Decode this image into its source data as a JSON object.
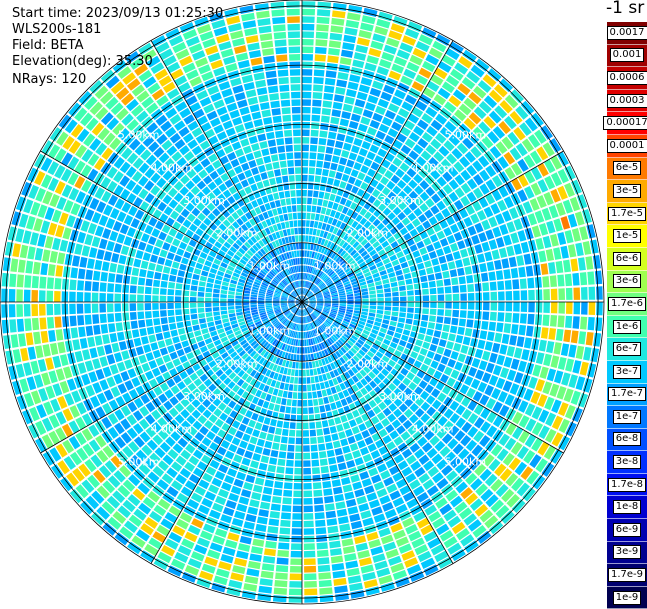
{
  "info": {
    "start_time": "Start time: 2023/09/13 01:25:30",
    "instrument": "WLS200s-181",
    "field": "Field: BETA",
    "elevation": "Elevation(deg): 35.30",
    "nrays": "NRays: 120"
  },
  "colorbar": {
    "unit_title": "-1 sr",
    "levels": [
      {
        "label": "0.0017",
        "color": "#800000"
      },
      {
        "label": "0.001",
        "color": "#a00000"
      },
      {
        "label": "0.0006",
        "color": "#c40000"
      },
      {
        "label": "0.0003",
        "color": "#e00000"
      },
      {
        "label": "0.00017",
        "color": "#ff0000"
      },
      {
        "label": "0.0001",
        "color": "#ff4400"
      },
      {
        "label": "6e-5",
        "color": "#ff7a00"
      },
      {
        "label": "3e-5",
        "color": "#ffaa00"
      },
      {
        "label": "1.7e-5",
        "color": "#ffd400"
      },
      {
        "label": "1e-5",
        "color": "#ffff00"
      },
      {
        "label": "6e-6",
        "color": "#d4ff20"
      },
      {
        "label": "3e-6",
        "color": "#a0ff50"
      },
      {
        "label": "1.7e-6",
        "color": "#70ff80"
      },
      {
        "label": "1e-6",
        "color": "#40ffb0"
      },
      {
        "label": "6e-7",
        "color": "#20e8e0"
      },
      {
        "label": "3e-7",
        "color": "#00c8ff"
      },
      {
        "label": "1.7e-7",
        "color": "#00a0ff"
      },
      {
        "label": "1e-7",
        "color": "#0078ff"
      },
      {
        "label": "6e-8",
        "color": "#0050ff"
      },
      {
        "label": "3e-8",
        "color": "#0030ff"
      },
      {
        "label": "1.7e-8",
        "color": "#0010f0"
      },
      {
        "label": "1e-8",
        "color": "#0000d0"
      },
      {
        "label": "6e-9",
        "color": "#0000b0"
      },
      {
        "label": "3e-9",
        "color": "#000090"
      },
      {
        "label": "1.7e-9",
        "color": "#000070"
      },
      {
        "label": "1e-9",
        "color": "#000050"
      }
    ]
  },
  "ppi": {
    "nrays": 120,
    "range_rings": [
      {
        "label": "1.00km",
        "km": 1
      },
      {
        "label": "2.00km",
        "km": 2
      },
      {
        "label": "3.00km",
        "km": 3
      },
      {
        "label": "4.00km",
        "km": 4
      },
      {
        "label": "5.00km",
        "km": 5
      }
    ],
    "max_range_km": 5.1
  }
}
